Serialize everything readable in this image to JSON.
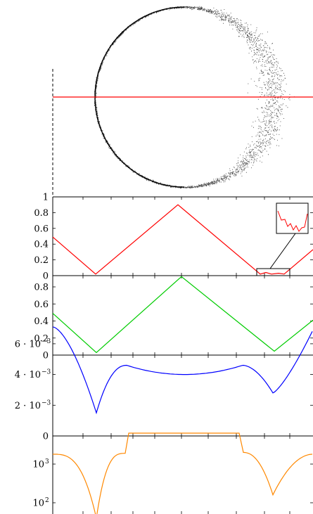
{
  "chart_data": [
    {
      "type": "scatter",
      "description_points": "noisy ring of points; noise grows toward the right side",
      "series": [
        {
          "values": [],
          "color": "#000000"
        },
        {
          "color": "#ff0000",
          "values": []
        }
      ]
    },
    {
      "type": "line",
      "ylim": [
        0,
        1
      ],
      "yticks": [
        "0",
        "0.2",
        "0.4",
        "0.6",
        "0.8",
        "1"
      ],
      "x": [
        0,
        0.25,
        0.5,
        0.75,
        0.85,
        1.0
      ],
      "series": [
        {
          "color": "#ff0000",
          "values": [
            0.49,
            0.02,
            0.9,
            0.02,
            0.02,
            0.33
          ]
        }
      ],
      "inset": true
    },
    {
      "type": "line",
      "ylim": [
        0,
        1
      ],
      "yticks": [
        "0",
        "0.2",
        "0.4",
        "0.6",
        "0.8"
      ],
      "x": [
        0,
        0.25,
        0.5,
        0.75,
        0.85,
        1.0
      ],
      "series": [
        {
          "color": "#00cc00",
          "values": [
            0.5,
            0.03,
            0.92,
            0.04,
            0.06,
            0.41
          ]
        }
      ]
    },
    {
      "type": "line",
      "ylim": [
        0,
        0.0075
      ],
      "yticks": [
        "0",
        "2 · 10",
        "4 · 10",
        "6 · 10"
      ],
      "ytick_exponent": "−3",
      "series": [
        {
          "color": "#0000ff",
          "values": [
            0.0071,
            0.0015,
            0.0046,
            0.004,
            0.0046,
            0.0028,
            0.0069
          ]
        }
      ]
    },
    {
      "type": "line",
      "yscale": "log",
      "yticks": [
        "10",
        "10"
      ],
      "ytick_exponents": [
        "2",
        "3"
      ],
      "series": [
        {
          "color": "#ff8800",
          "values": [
            1800,
            40,
            1800,
            6000,
            6000,
            1800,
            160,
            1800
          ]
        }
      ]
    }
  ]
}
